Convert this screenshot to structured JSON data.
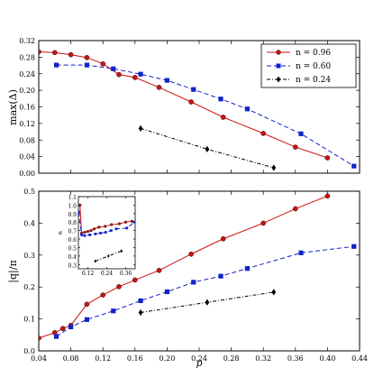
{
  "chart_data": [
    {
      "type": "line",
      "ylabel": "max(Δ)",
      "xlabel": "",
      "xlim": [
        0.04,
        0.44
      ],
      "ylim": [
        0.0,
        0.32
      ],
      "xticks": [
        "0.04",
        "0.08",
        "0.12",
        "0.16",
        "0.20",
        "0.24",
        "0.28",
        "0.32",
        "0.36",
        "0.40",
        "0.44"
      ],
      "yticks": [
        "0.00",
        "0.04",
        "0.08",
        "0.12",
        "0.16",
        "0.20",
        "0.24",
        "0.28",
        "0.32"
      ],
      "legend": "top-right",
      "series": [
        {
          "name": "n = 0.96",
          "color": "#cc1111",
          "marker": "circle",
          "style": "solid",
          "x": [
            0.04,
            0.06,
            0.08,
            0.1,
            0.12,
            0.14,
            0.16,
            0.19,
            0.23,
            0.27,
            0.32,
            0.36,
            0.4
          ],
          "y": [
            0.293,
            0.291,
            0.286,
            0.279,
            0.264,
            0.238,
            0.231,
            0.207,
            0.172,
            0.135,
            0.096,
            0.063,
            0.037
          ]
        },
        {
          "name": "n = 0.60",
          "color": "#1122cc",
          "marker": "square",
          "style": "dashed",
          "x": [
            0.062,
            0.1,
            0.133,
            0.167,
            0.2,
            0.233,
            0.267,
            0.3,
            0.367,
            0.433
          ],
          "y": [
            0.261,
            0.261,
            0.252,
            0.239,
            0.224,
            0.202,
            0.179,
            0.155,
            0.095,
            0.017
          ]
        },
        {
          "name": "n = 0.24",
          "color": "#000000",
          "marker": "diamond",
          "style": "dashdot",
          "x": [
            0.167,
            0.25,
            0.333
          ],
          "y": [
            0.108,
            0.058,
            0.013
          ]
        }
      ]
    },
    {
      "type": "line",
      "ylabel": "|q|/π",
      "xlabel": "p",
      "xlim": [
        0.04,
        0.44
      ],
      "ylim": [
        0.0,
        0.5
      ],
      "xticks": [
        "0.04",
        "0.08",
        "0.12",
        "0.16",
        "0.20",
        "0.24",
        "0.28",
        "0.32",
        "0.36",
        "0.40",
        "0.44"
      ],
      "yticks": [
        "0.0",
        "0.1",
        "0.2",
        "0.3",
        "0.4",
        "0.5"
      ],
      "series": [
        {
          "name": "n = 0.96",
          "color": "#cc1111",
          "marker": "circle",
          "style": "solid",
          "x": [
            0.04,
            0.06,
            0.07,
            0.08,
            0.1,
            0.12,
            0.14,
            0.16,
            0.19,
            0.23,
            0.27,
            0.32,
            0.36,
            0.4
          ],
          "y": [
            0.04,
            0.057,
            0.07,
            0.08,
            0.146,
            0.175,
            0.201,
            0.222,
            0.252,
            0.303,
            0.351,
            0.4,
            0.445,
            0.485
          ]
        },
        {
          "name": "n = 0.60",
          "color": "#1122cc",
          "marker": "square",
          "style": "dashed",
          "x": [
            0.062,
            0.08,
            0.1,
            0.133,
            0.167,
            0.2,
            0.233,
            0.267,
            0.3,
            0.367,
            0.433
          ],
          "y": [
            0.045,
            0.075,
            0.098,
            0.125,
            0.157,
            0.185,
            0.215,
            0.234,
            0.258,
            0.307,
            0.327
          ]
        },
        {
          "name": "n = 0.24",
          "color": "#000000",
          "marker": "diamond",
          "style": "dashdot",
          "x": [
            0.167,
            0.25,
            0.333
          ],
          "y": [
            0.12,
            0.152,
            0.184
          ]
        }
      ],
      "inset": {
        "xlim": [
          0.06,
          0.42
        ],
        "ylim": [
          0.25,
          1.1
        ],
        "xticks": [
          "0.12",
          "0.24",
          "0.36"
        ],
        "yticks": [
          "0.3",
          "0.4",
          "0.5",
          "0.6",
          "0.7",
          "0.8",
          "0.9",
          "1.0",
          "1.1"
        ],
        "ylabel": "α",
        "series": [
          {
            "name": "n = 0.96",
            "color": "#cc1111",
            "marker": "circle",
            "style": "solid",
            "x": [
              0.06,
              0.07,
              0.08,
              0.1,
              0.12,
              0.14,
              0.16,
              0.19,
              0.23,
              0.27,
              0.32,
              0.36,
              0.4
            ],
            "y": [
              1.0,
              1.0,
              0.67,
              0.68,
              0.69,
              0.7,
              0.72,
              0.74,
              0.75,
              0.77,
              0.78,
              0.8,
              0.81
            ]
          },
          {
            "name": "n = 0.60",
            "color": "#1122cc",
            "marker": "square",
            "style": "dashed",
            "x": [
              0.062,
              0.08,
              0.1,
              0.133,
              0.167,
              0.2,
              0.233,
              0.267,
              0.3,
              0.367,
              0.415
            ],
            "y": [
              0.92,
              0.65,
              0.64,
              0.65,
              0.66,
              0.67,
              0.68,
              0.7,
              0.72,
              0.73,
              0.8
            ]
          },
          {
            "name": "n = 0.24",
            "color": "#000000",
            "marker": "diamond",
            "style": "dashdot",
            "x": [
              0.167,
              0.25,
              0.333
            ],
            "y": [
              0.34,
              0.4,
              0.46
            ]
          }
        ]
      }
    }
  ]
}
